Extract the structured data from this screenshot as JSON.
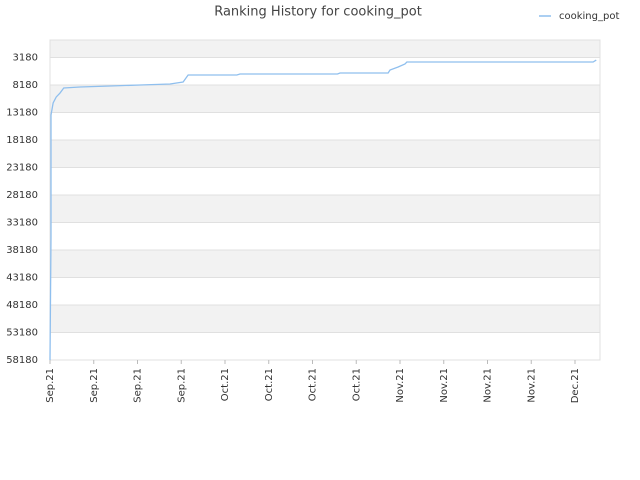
{
  "chart_data": {
    "type": "line",
    "title": "Ranking History for cooking_pot",
    "x": [
      0,
      0.16,
      0.16,
      0.5,
      1,
      1.6,
      2.2,
      4.8,
      9.6,
      14.4,
      19.2,
      21.3,
      22.1,
      29.9,
      30.4,
      46,
      46.4,
      54.1,
      54.4,
      55.7,
      56.8,
      57.1,
      86.9,
      87.4
    ],
    "series": [
      {
        "name": "cooking_pot",
        "color": "#8fbfee",
        "values": [
          58180,
          35800,
          13640,
          11450,
          10360,
          9640,
          8730,
          8545,
          8360,
          8180,
          8000,
          7640,
          6360,
          6360,
          6180,
          6180,
          6000,
          6000,
          5450,
          4910,
          4360,
          4000,
          4000,
          3640
        ]
      }
    ],
    "xlim": [
      0,
      88
    ],
    "xticks": [
      {
        "value": 0,
        "label": "Sep.21"
      },
      {
        "value": 7,
        "label": "Sep.21"
      },
      {
        "value": 14,
        "label": "Sep.21"
      },
      {
        "value": 21,
        "label": "Sep.21"
      },
      {
        "value": 28,
        "label": "Oct.21"
      },
      {
        "value": 35,
        "label": "Oct.21"
      },
      {
        "value": 42,
        "label": "Oct.21"
      },
      {
        "value": 49,
        "label": "Oct.21"
      },
      {
        "value": 56,
        "label": "Nov.21"
      },
      {
        "value": 63,
        "label": "Nov.21"
      },
      {
        "value": 70,
        "label": "Nov.21"
      },
      {
        "value": 77,
        "label": "Nov.21"
      },
      {
        "value": 84,
        "label": "Dec.21"
      }
    ],
    "ylim": [
      58180,
      0
    ],
    "yticks": [
      3180,
      8180,
      13180,
      18180,
      23180,
      28180,
      33180,
      38180,
      43180,
      48180,
      53180,
      58180
    ],
    "grid": true,
    "legend": "top-right"
  }
}
